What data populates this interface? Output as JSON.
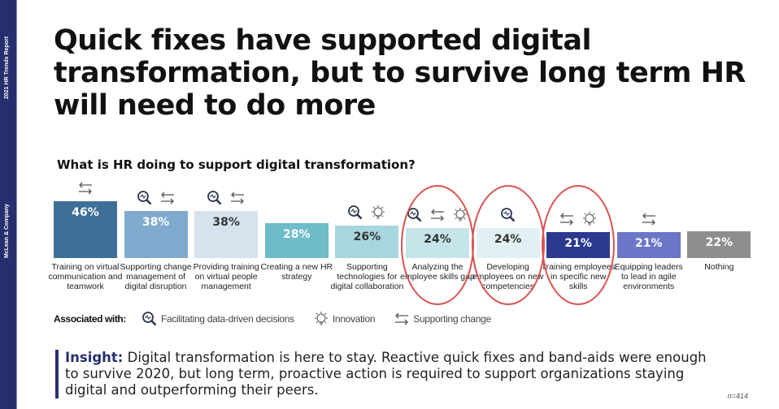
{
  "sidebar": {
    "top_text": "2021 HR Trends Report",
    "bottom_text": "McLean & Company"
  },
  "title": "Quick fixes have supported digital transformation, but to survive long term HR will need to do more",
  "chart_data": {
    "type": "bar",
    "title": "What is HR doing to support digital transformation?",
    "categories": [
      "Training on virtual communication and teamwork",
      "Supporting change management of digital disruption",
      "Providing training on virtual people management",
      "Creating a new HR strategy",
      "Supporting technologies for digital collaboration",
      "Analyzing the employee skills gap",
      "Developing employees on new competencies",
      "Training employees in specific new skills",
      "Equipping leaders to lead in agile environments",
      "Nothing"
    ],
    "values": [
      46,
      38,
      38,
      28,
      26,
      24,
      24,
      21,
      21,
      22
    ],
    "value_labels": [
      "46%",
      "38%",
      "38%",
      "28%",
      "26%",
      "24%",
      "24%",
      "21%",
      "21%",
      "22%"
    ],
    "colors": [
      "#3e6f96",
      "#80aacd",
      "#d6e3ee",
      "#6cbdc9",
      "#a8d6dd",
      "#c5e5ea",
      "#e0f0f3",
      "#2b3a8e",
      "#6c76c9",
      "#8e8e8e"
    ],
    "text_colors": [
      "#fff",
      "#fff",
      "#333",
      "#fff",
      "#333",
      "#333",
      "#333",
      "#fff",
      "#fff",
      "#fff"
    ],
    "associations": [
      [
        "change"
      ],
      [
        "data",
        "change"
      ],
      [
        "data",
        "change"
      ],
      [],
      [
        "data",
        "innovation"
      ],
      [
        "data",
        "change",
        "innovation"
      ],
      [
        "data"
      ],
      [
        "change",
        "innovation"
      ],
      [
        "change"
      ],
      []
    ],
    "highlighted": [
      5,
      6,
      7
    ],
    "highlight_color": "#d9534f",
    "ylim": [
      0,
      50
    ]
  },
  "legend": {
    "label": "Associated with:",
    "items": [
      {
        "key": "data",
        "icon": "data-search-icon",
        "label": "Facilitating data-driven decisions"
      },
      {
        "key": "innovation",
        "icon": "lightbulb-icon",
        "label": "Innovation"
      },
      {
        "key": "change",
        "icon": "swap-arrows-icon",
        "label": "Supporting change"
      }
    ]
  },
  "insight": {
    "label": "Insight:",
    "text": " Digital transformation is here to stay. Reactive quick fixes and band-aids were enough to survive 2020, but long term, proactive action is required to support organizations staying digital and outperforming their peers."
  },
  "sample_size": "n=414"
}
